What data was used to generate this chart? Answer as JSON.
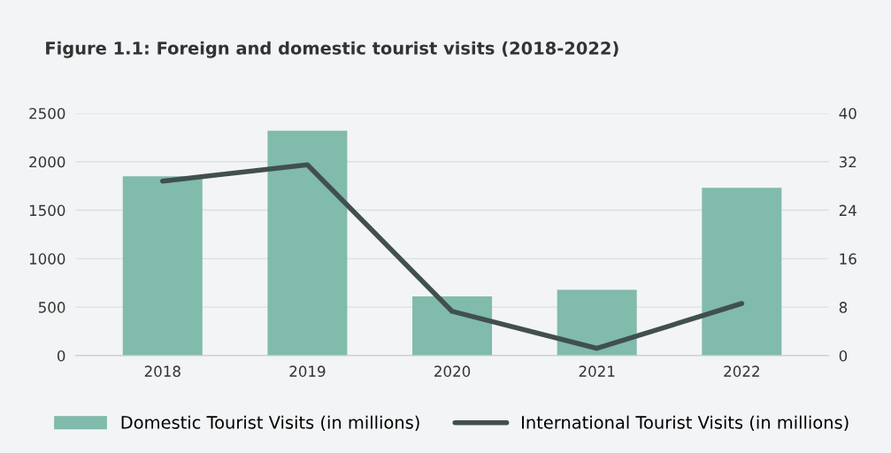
{
  "chart_data": {
    "type": "bar",
    "title": "Figure 1.1: Foreign and domestic tourist visits (2018-2022)",
    "categories": [
      "2018",
      "2019",
      "2020",
      "2021",
      "2022"
    ],
    "series": [
      {
        "name": "Domestic Tourist Visits (in millions)",
        "color": "#80bbab",
        "values": [
          1850,
          2320,
          610,
          680,
          1730
        ]
      },
      {
        "name": "International Tourist Visits (in millions)",
        "type": "line",
        "axis": "y2",
        "color": "#414f4f",
        "values": [
          28.8,
          31.5,
          7.3,
          1.2,
          8.6
        ]
      }
    ],
    "ylim": [
      0,
      2500
    ],
    "yticks": [
      0,
      500,
      1000,
      1500,
      2000,
      2500
    ],
    "y2lim": [
      0,
      40
    ],
    "y2ticks": [
      0,
      8,
      16,
      24,
      32,
      40
    ],
    "grid": "y",
    "legend": "bottom"
  }
}
